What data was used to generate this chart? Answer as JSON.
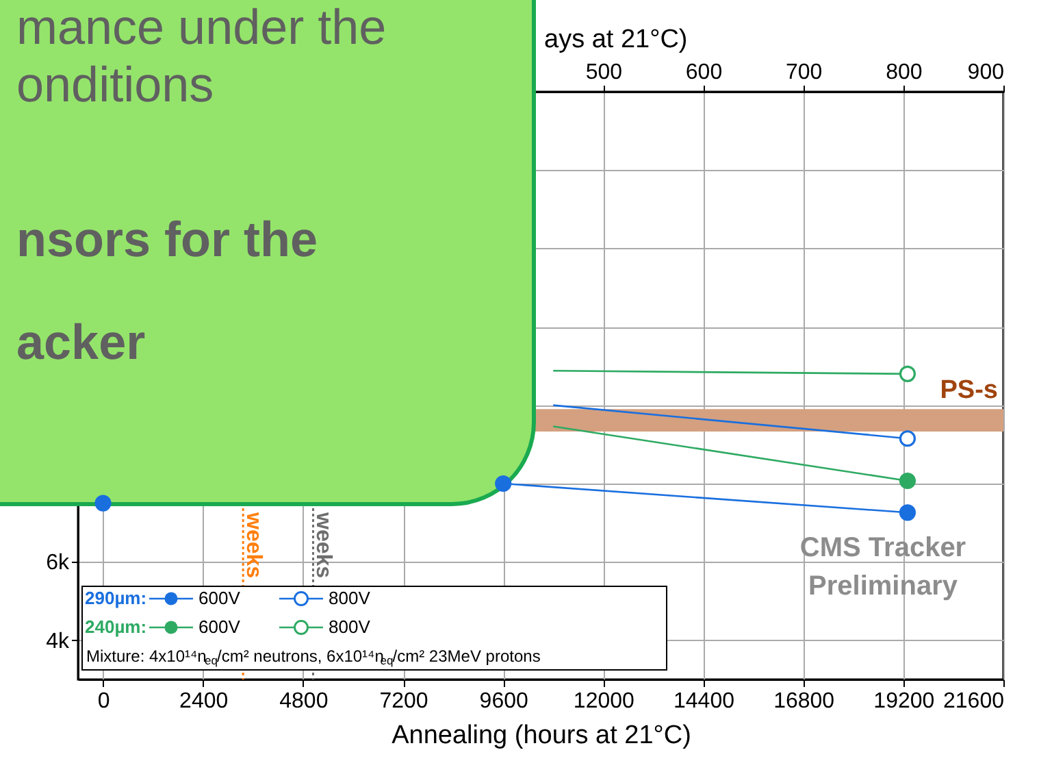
{
  "chart_data": {
    "type": "line",
    "xlabel": "Annealing (hours at 21°C)",
    "x2label": "ays at 21°C)",
    "xlim": [
      -600,
      21600
    ],
    "xticks": [
      0,
      2400,
      4800,
      7200,
      9600,
      12000,
      14400,
      16800,
      19200,
      21600
    ],
    "x2lim": [
      -25,
      900
    ],
    "x2ticks": [
      500,
      600,
      700,
      800,
      900
    ],
    "ylim": [
      3000,
      18000
    ],
    "yticks": [
      {
        "value": 4000,
        "label": "4k"
      },
      {
        "value": 6000,
        "label": "6k"
      },
      {
        "value": 8000,
        "label": null
      },
      {
        "value": 10000,
        "label": null
      },
      {
        "value": 12000,
        "label": null
      },
      {
        "value": 14000,
        "label": null
      },
      {
        "value": 16000,
        "label": null
      }
    ],
    "grid": true,
    "legend": "bottom left",
    "marker": "circle",
    "series": [
      {
        "name": "600V",
        "color": "#1a6fdf",
        "x": [
          0,
          9600,
          19300
        ],
        "values": [
          7500,
          8000,
          7260
        ]
      },
      {
        "name": "800V",
        "type": "scatter",
        "color": "#1a6fdf",
        "colors": [
          "#ffffff"
        ],
        "x": [
          19300
        ],
        "values": [
          9150
        ]
      },
      {
        "name": "600V",
        "type": "scatter",
        "color": "#2eaa63",
        "x": [
          19300
        ],
        "values": [
          8070
        ]
      },
      {
        "name": "800V",
        "type": "scatter",
        "color": "#2eaa63",
        "colors": [
          "#ffffff"
        ],
        "x": [
          19300
        ],
        "values": [
          10800
        ]
      },
      {
        "color": "#1a6fdf",
        "marker": "none",
        "x": [
          10800,
          19300
        ],
        "values": [
          10000,
          9150
        ]
      },
      {
        "color": "#2eaa63",
        "marker": "none",
        "x": [
          10800,
          19300
        ],
        "values": [
          9460,
          8070
        ]
      },
      {
        "color": "#2eaa63",
        "marker": "none",
        "x": [
          10800,
          19300
        ],
        "values": [
          10880,
          10800
        ]
      }
    ],
    "bands": [
      {
        "axis": "y",
        "from": 9330,
        "to": 9900,
        "label": "PS-s",
        "color": "#d4a07f"
      }
    ],
    "ref_lines": [
      {
        "axis": "x",
        "value": 3360,
        "label": "weeks",
        "color": "#ff7f0e",
        "line_style": "dotted"
      },
      {
        "axis": "x",
        "value": 5040,
        "label": "weeks",
        "color": "#6e6e6e",
        "line_style": "dotted"
      }
    ],
    "annotations": [
      "290µm:",
      "240µm:",
      "Mixture: 4x10¹⁴n$_{eq}$/cm² neutrons, 6x10¹⁴n$_{eq}$/cm² 23MeV protons",
      "CMS Tracker",
      "Preliminary",
      "mance under the",
      "onditions",
      "nsors for the",
      "acker"
    ]
  }
}
